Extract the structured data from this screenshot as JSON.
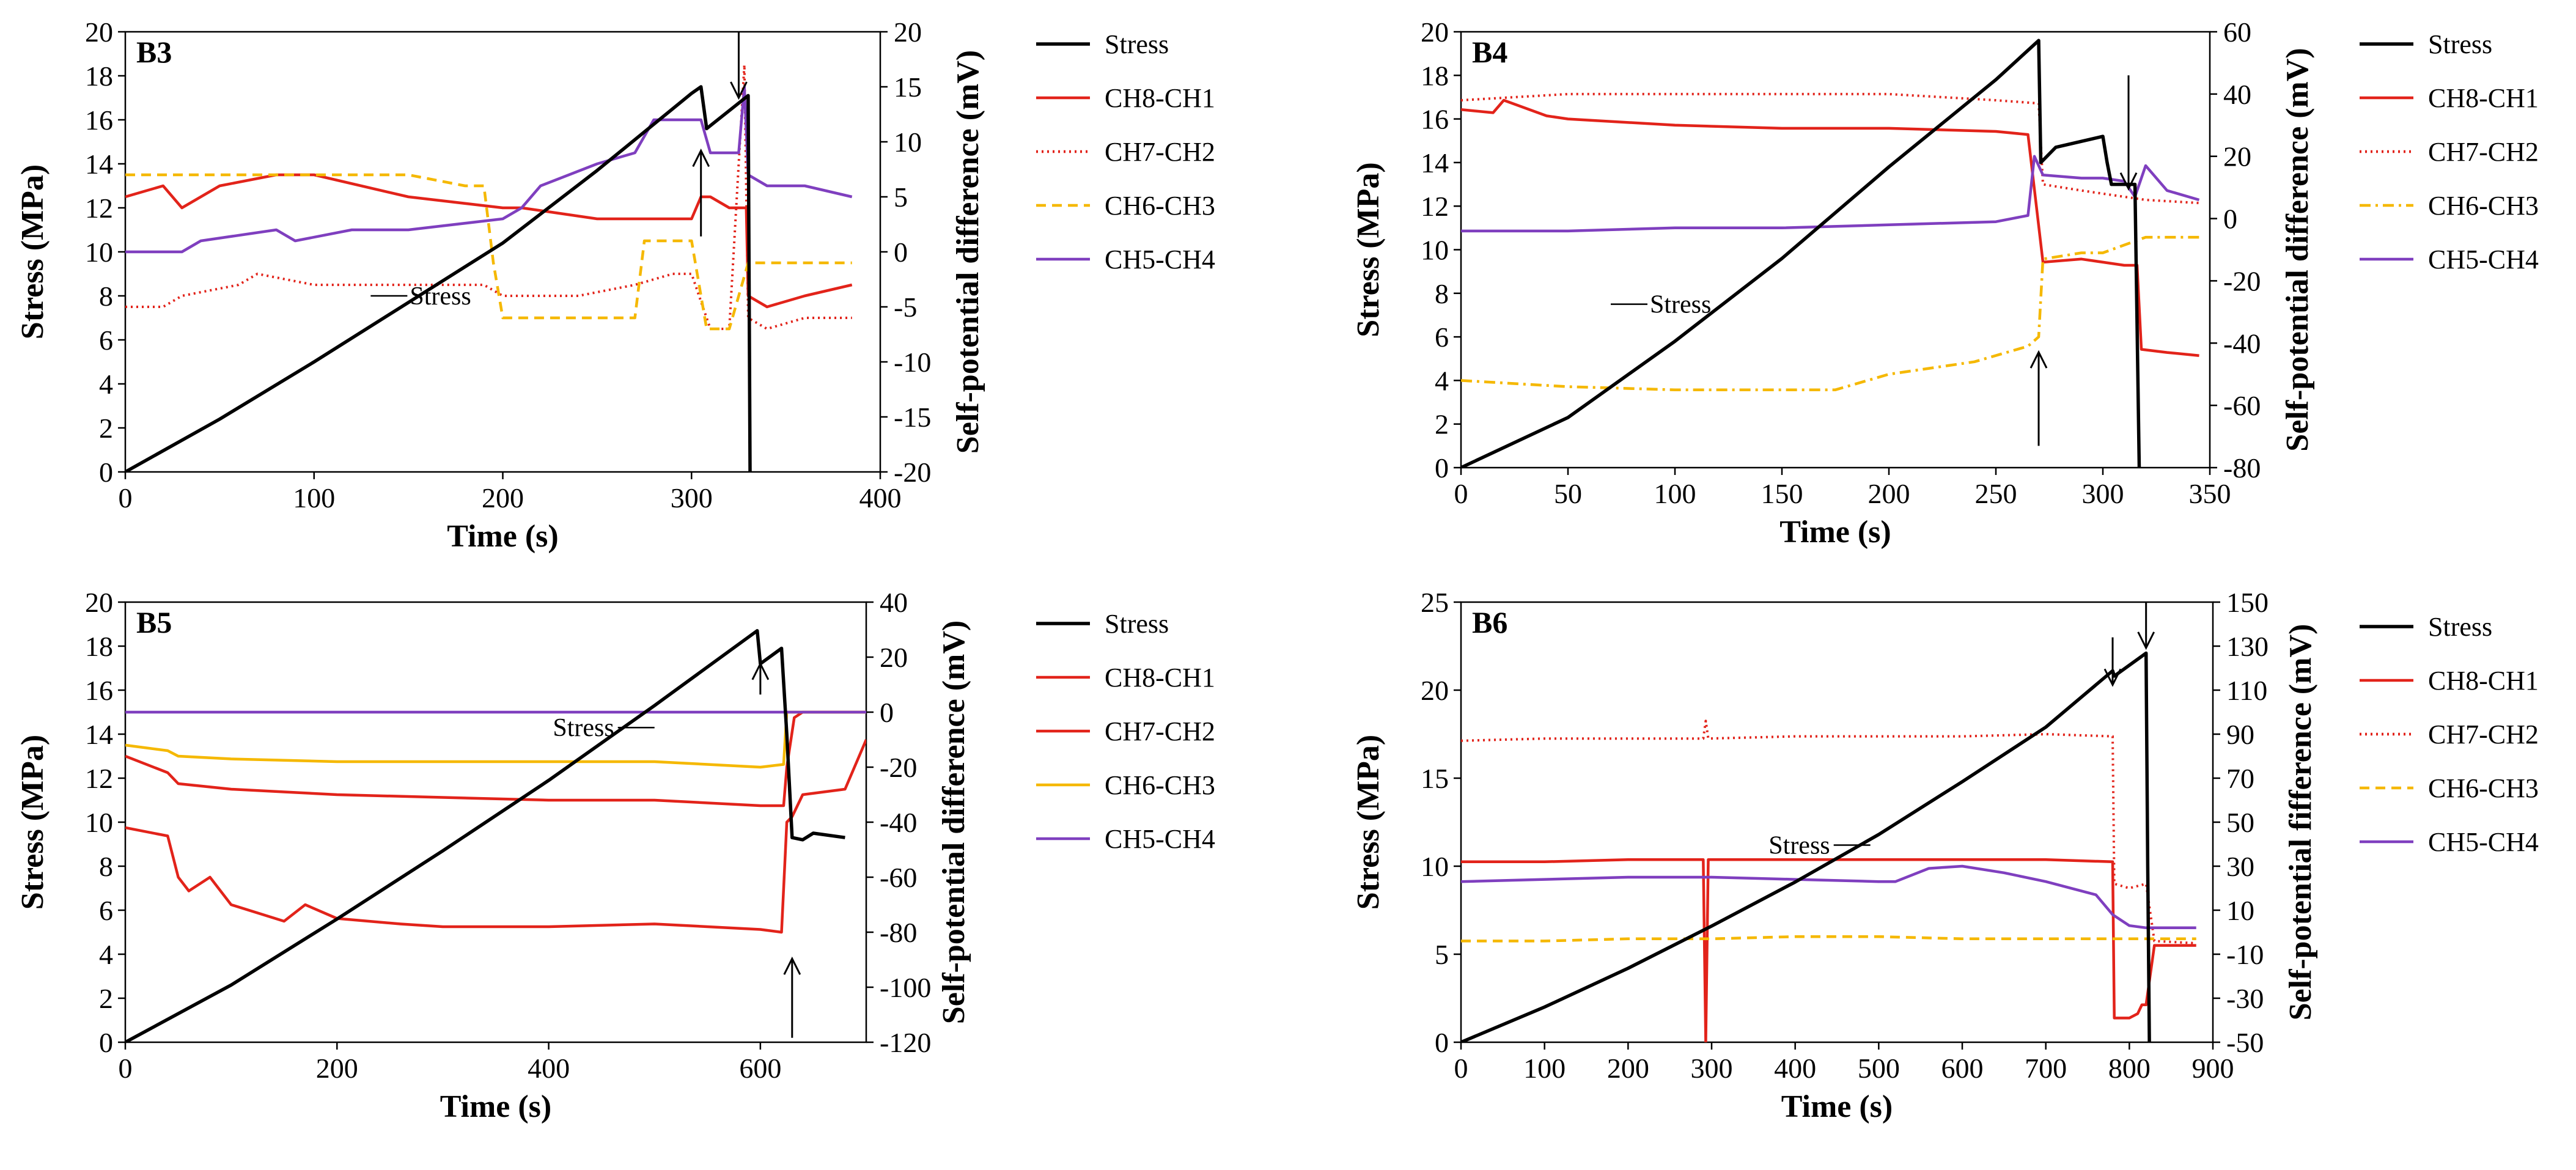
{
  "chart_data": [
    {
      "type": "line",
      "panel_label": "B3",
      "xlabel": "Time (s)",
      "ylabel": "Stress (MPa)",
      "y2label": "Self-potential difference (mV)",
      "xlim": [
        0,
        400
      ],
      "xticks": [
        0,
        100,
        200,
        300,
        400
      ],
      "ylim": [
        0,
        20
      ],
      "yticks": [
        0,
        2,
        4,
        6,
        8,
        10,
        12,
        14,
        16,
        18,
        20
      ],
      "y2lim": [
        -20,
        20
      ],
      "y2ticks": [
        -20,
        -15,
        -10,
        -5,
        0,
        5,
        10,
        15,
        20
      ],
      "stress": {
        "name": "Stress",
        "x": [
          0,
          50,
          100,
          150,
          200,
          250,
          300,
          305,
          308,
          330,
          331
        ],
        "y": [
          0,
          2.4,
          5.0,
          7.7,
          10.4,
          13.7,
          17.2,
          17.5,
          15.6,
          17.1,
          0
        ]
      },
      "series": [
        {
          "name": "CH8-CH1",
          "color": "#e2231a",
          "dash": "solid",
          "x": [
            0,
            20,
            30,
            50,
            80,
            100,
            150,
            200,
            210,
            250,
            280,
            300,
            305,
            310,
            320,
            325,
            329,
            330,
            340,
            360,
            385
          ],
          "y": [
            5,
            6,
            4,
            6,
            7,
            7,
            5,
            4,
            4,
            3,
            3,
            3,
            5,
            5,
            4,
            4,
            4,
            -4,
            -5,
            -4,
            -3
          ]
        },
        {
          "name": "CH7-CH2",
          "color": "#e2231a",
          "dash": "dot",
          "x": [
            0,
            20,
            30,
            60,
            70,
            100,
            150,
            190,
            200,
            240,
            270,
            290,
            300,
            310,
            320,
            328,
            330,
            340,
            360,
            385
          ],
          "y": [
            -5,
            -5,
            -4,
            -3,
            -2,
            -3,
            -3,
            -3,
            -4,
            -4,
            -3,
            -2,
            -2,
            -7,
            -7,
            17,
            -6,
            -7,
            -6,
            -6
          ]
        },
        {
          "name": "CH6-CH3",
          "color": "#f5b800",
          "dash": "dash",
          "x": [
            0,
            50,
            100,
            150,
            180,
            190,
            195,
            200,
            230,
            260,
            270,
            275,
            300,
            308,
            320,
            330,
            340,
            385
          ],
          "y": [
            7,
            7,
            7,
            7,
            6,
            6,
            -1,
            -6,
            -6,
            -6,
            -6,
            1,
            1,
            -7,
            -7,
            -1,
            -1,
            -1
          ]
        },
        {
          "name": "CH5-CH4",
          "color": "#7f3fbf",
          "dash": "solid",
          "x": [
            0,
            30,
            40,
            80,
            90,
            120,
            150,
            200,
            210,
            220,
            250,
            270,
            280,
            300,
            305,
            310,
            325,
            328,
            330,
            340,
            360,
            385
          ],
          "y": [
            0,
            0,
            1,
            2,
            1,
            2,
            2,
            3,
            4,
            6,
            8,
            9,
            12,
            12,
            12,
            9,
            9,
            15,
            7,
            6,
            6,
            5
          ]
        }
      ],
      "annotations": {
        "stress_label": "Stress",
        "stress_label_at": [
          130,
          8.0
        ]
      },
      "arrows": [
        {
          "kind": "up",
          "x": 305,
          "y_from": 10.7,
          "y_to": 14.6
        },
        {
          "kind": "down",
          "x": 325,
          "y_from": 20.0,
          "y_to": 17.0
        }
      ]
    },
    {
      "type": "line",
      "panel_label": "B4",
      "xlabel": "Time (s)",
      "ylabel": "Stress (MPa)",
      "y2label": "Self-potential difference (mV)",
      "xlim": [
        0,
        350
      ],
      "xticks": [
        0,
        50,
        100,
        150,
        200,
        250,
        300,
        350
      ],
      "ylim": [
        0,
        20
      ],
      "yticks": [
        0,
        2,
        4,
        6,
        8,
        10,
        12,
        14,
        16,
        18,
        20
      ],
      "y2lim": [
        -80,
        60
      ],
      "y2ticks": [
        -80,
        -60,
        -40,
        -20,
        0,
        20,
        40,
        60
      ],
      "stress": {
        "name": "Stress",
        "x": [
          0,
          50,
          100,
          150,
          200,
          250,
          270,
          271,
          278,
          300,
          302,
          304,
          315,
          317
        ],
        "y": [
          0,
          2.3,
          5.8,
          9.6,
          13.8,
          17.8,
          19.6,
          14.0,
          14.7,
          15.2,
          14.0,
          13.0,
          13.0,
          0
        ]
      },
      "series": [
        {
          "name": "CH8-CH1",
          "color": "#e2231a",
          "dash": "solid",
          "x": [
            0,
            15,
            20,
            40,
            50,
            100,
            150,
            200,
            250,
            265,
            272,
            290,
            300,
            310,
            316,
            318,
            330,
            345
          ],
          "y": [
            35,
            34,
            38,
            33,
            32,
            30,
            29,
            29,
            28,
            27,
            -14,
            -13,
            -14,
            -15,
            -15,
            -42,
            -43,
            -44
          ]
        },
        {
          "name": "CH7-CH2",
          "color": "#e2231a",
          "dash": "dot",
          "x": [
            0,
            50,
            100,
            150,
            200,
            250,
            270,
            272,
            290,
            300,
            320,
            345
          ],
          "y": [
            38,
            40,
            40,
            40,
            40,
            38,
            37,
            11,
            9,
            8,
            6,
            5
          ]
        },
        {
          "name": "CH6-CH3",
          "color": "#f5b800",
          "dash": "dashdot",
          "x": [
            0,
            50,
            100,
            150,
            175,
            200,
            240,
            265,
            270,
            272,
            290,
            300,
            320,
            345
          ],
          "y": [
            -52,
            -54,
            -55,
            -55,
            -55,
            -50,
            -46,
            -41,
            -38,
            -13,
            -11,
            -11,
            -6,
            -6
          ]
        },
        {
          "name": "CH5-CH4",
          "color": "#7f3fbf",
          "dash": "solid",
          "x": [
            0,
            50,
            100,
            150,
            200,
            250,
            265,
            268,
            272,
            290,
            300,
            310,
            315,
            320,
            330,
            345
          ],
          "y": [
            -4,
            -4,
            -3,
            -3,
            -2,
            -1,
            1,
            20,
            14,
            13,
            13,
            12,
            7,
            17,
            9,
            6
          ]
        }
      ],
      "annotations": {
        "stress_label": "Stress",
        "stress_label_at": [
          70,
          7.5
        ]
      },
      "arrows": [
        {
          "kind": "up",
          "x": 270,
          "y_from": 1.0,
          "y_to": 5.3
        },
        {
          "kind": "down",
          "x": 312,
          "y_from": 18.0,
          "y_to": 12.8
        }
      ]
    },
    {
      "type": "line",
      "panel_label": "B5",
      "xlabel": "Time (s)",
      "ylabel": "Stress (MPa)",
      "y2label": "Self-potential difference (mV)",
      "xlim": [
        0,
        700
      ],
      "xticks": [
        0,
        200,
        400,
        600
      ],
      "ylim": [
        0,
        20
      ],
      "yticks": [
        0,
        2,
        4,
        6,
        8,
        10,
        12,
        14,
        16,
        18,
        20
      ],
      "y2lim": [
        -120,
        40
      ],
      "y2ticks": [
        -120,
        -100,
        -80,
        -60,
        -40,
        -20,
        0,
        20,
        40
      ],
      "stress": {
        "name": "Stress",
        "x": [
          0,
          100,
          200,
          300,
          400,
          500,
          597,
          600,
          620,
          625,
          630,
          640,
          650,
          680
        ],
        "y": [
          0,
          2.6,
          5.6,
          8.7,
          11.9,
          15.3,
          18.7,
          17.2,
          17.9,
          14.0,
          9.3,
          9.2,
          9.5,
          9.3
        ]
      },
      "series": [
        {
          "name": "CH8-CH1",
          "color": "#e2231a",
          "dash": "solid",
          "x": [
            0,
            40,
            50,
            60,
            80,
            100,
            150,
            170,
            200,
            260,
            300,
            400,
            500,
            600,
            620,
            625,
            630,
            640,
            680,
            700
          ],
          "y": [
            -42,
            -45,
            -60,
            -65,
            -60,
            -70,
            -76,
            -70,
            -75,
            -77,
            -78,
            -78,
            -77,
            -79,
            -80,
            -40,
            -38,
            -30,
            -28,
            -10
          ]
        },
        {
          "name": "CH7-CH2",
          "color": "#e2231a",
          "dash": "solid",
          "x": [
            0,
            40,
            50,
            100,
            150,
            200,
            300,
            400,
            500,
            600,
            622,
            625,
            632,
            640,
            700
          ],
          "y": [
            -16,
            -22,
            -26,
            -28,
            -29,
            -30,
            -31,
            -32,
            -32,
            -34,
            -34,
            -20,
            -2,
            0,
            0
          ]
        },
        {
          "name": "CH6-CH3",
          "color": "#f5b800",
          "dash": "solid",
          "x": [
            0,
            40,
            50,
            100,
            200,
            300,
            400,
            500,
            600,
            622,
            625,
            640,
            700
          ],
          "y": [
            -12,
            -14,
            -16,
            -17,
            -18,
            -18,
            -18,
            -18,
            -20,
            -19,
            0,
            0,
            0
          ]
        },
        {
          "name": "CH5-CH4",
          "color": "#7f3fbf",
          "dash": "solid",
          "x": [
            0,
            700
          ],
          "y": [
            0,
            0
          ]
        }
      ],
      "annotations": {
        "stress_label": "Stress",
        "stress_label_at": [
          500,
          14.3
        ]
      },
      "arrows": [
        {
          "kind": "up",
          "x": 600,
          "y_from": 15.8,
          "y_to": 17.2
        },
        {
          "kind": "up",
          "x": 630,
          "y_from": 0.2,
          "y_to": 3.8
        }
      ]
    },
    {
      "type": "line",
      "panel_label": "B6",
      "xlabel": "Time (s)",
      "ylabel": "Stress (MPa)",
      "y2label": "Self-potential fifference (mV)",
      "xlim": [
        0,
        900
      ],
      "xticks": [
        0,
        100,
        200,
        300,
        400,
        500,
        600,
        700,
        800,
        900
      ],
      "ylim": [
        0,
        25
      ],
      "yticks": [
        0,
        5,
        10,
        15,
        20,
        25
      ],
      "y2lim": [
        -50,
        150
      ],
      "y2ticks": [
        -50,
        -30,
        -10,
        10,
        30,
        50,
        70,
        90,
        110,
        130,
        150
      ],
      "stress": {
        "name": "Stress",
        "x": [
          0,
          100,
          200,
          300,
          400,
          500,
          600,
          700,
          780,
          782,
          820,
          822,
          824
        ],
        "y": [
          0,
          2.0,
          4.2,
          6.6,
          9.1,
          11.8,
          14.8,
          17.9,
          21.1,
          20.8,
          22.1,
          10.0,
          0
        ]
      },
      "series": [
        {
          "name": "CH8-CH1",
          "color": "#e2231a",
          "dash": "solid",
          "x": [
            0,
            100,
            200,
            290,
            293,
            296,
            300,
            400,
            500,
            600,
            700,
            780,
            782,
            800,
            810,
            815,
            820,
            830,
            880
          ],
          "y": [
            32,
            32,
            33,
            33,
            -50,
            33,
            33,
            33,
            33,
            33,
            33,
            32,
            -39,
            -39,
            -37,
            -33,
            -33,
            -6,
            -6
          ]
        },
        {
          "name": "CH7-CH2",
          "color": "#e2231a",
          "dash": "dot",
          "x": [
            0,
            100,
            200,
            290,
            293,
            296,
            400,
            500,
            600,
            700,
            780,
            782,
            800,
            820,
            830,
            880
          ],
          "y": [
            87,
            88,
            88,
            88,
            96,
            88,
            89,
            89,
            89,
            90,
            89,
            22,
            20,
            22,
            -4,
            -5
          ]
        },
        {
          "name": "CH6-CH3",
          "color": "#f5b800",
          "dash": "dash",
          "x": [
            0,
            100,
            200,
            300,
            400,
            500,
            600,
            700,
            780,
            800,
            820,
            880
          ],
          "y": [
            -4,
            -4,
            -3,
            -3,
            -2,
            -2,
            -3,
            -3,
            -3,
            -3,
            -3,
            -3
          ]
        },
        {
          "name": "CH5-CH4",
          "color": "#7f3fbf",
          "dash": "solid",
          "x": [
            0,
            100,
            200,
            300,
            400,
            500,
            520,
            560,
            600,
            650,
            700,
            760,
            780,
            800,
            820,
            850,
            880
          ],
          "y": [
            23,
            24,
            25,
            25,
            24,
            23,
            23,
            29,
            30,
            27,
            23,
            17,
            8,
            3,
            2,
            2,
            2
          ]
        }
      ],
      "annotations": {
        "stress_label": "Stress",
        "stress_label_at": [
          490,
          11.2
        ]
      },
      "arrows": [
        {
          "kind": "down",
          "x": 780,
          "y_from": 23.0,
          "y_to": 20.3
        },
        {
          "kind": "down",
          "x": 820,
          "y_from": 25.0,
          "y_to": 22.4
        }
      ]
    }
  ],
  "colors": {
    "stress": "#000000",
    "ch8_ch1": "#e2231a",
    "ch7_ch2": "#e2231a",
    "ch6_ch3": "#f5b800",
    "ch5_ch4": "#7f3fbf"
  }
}
